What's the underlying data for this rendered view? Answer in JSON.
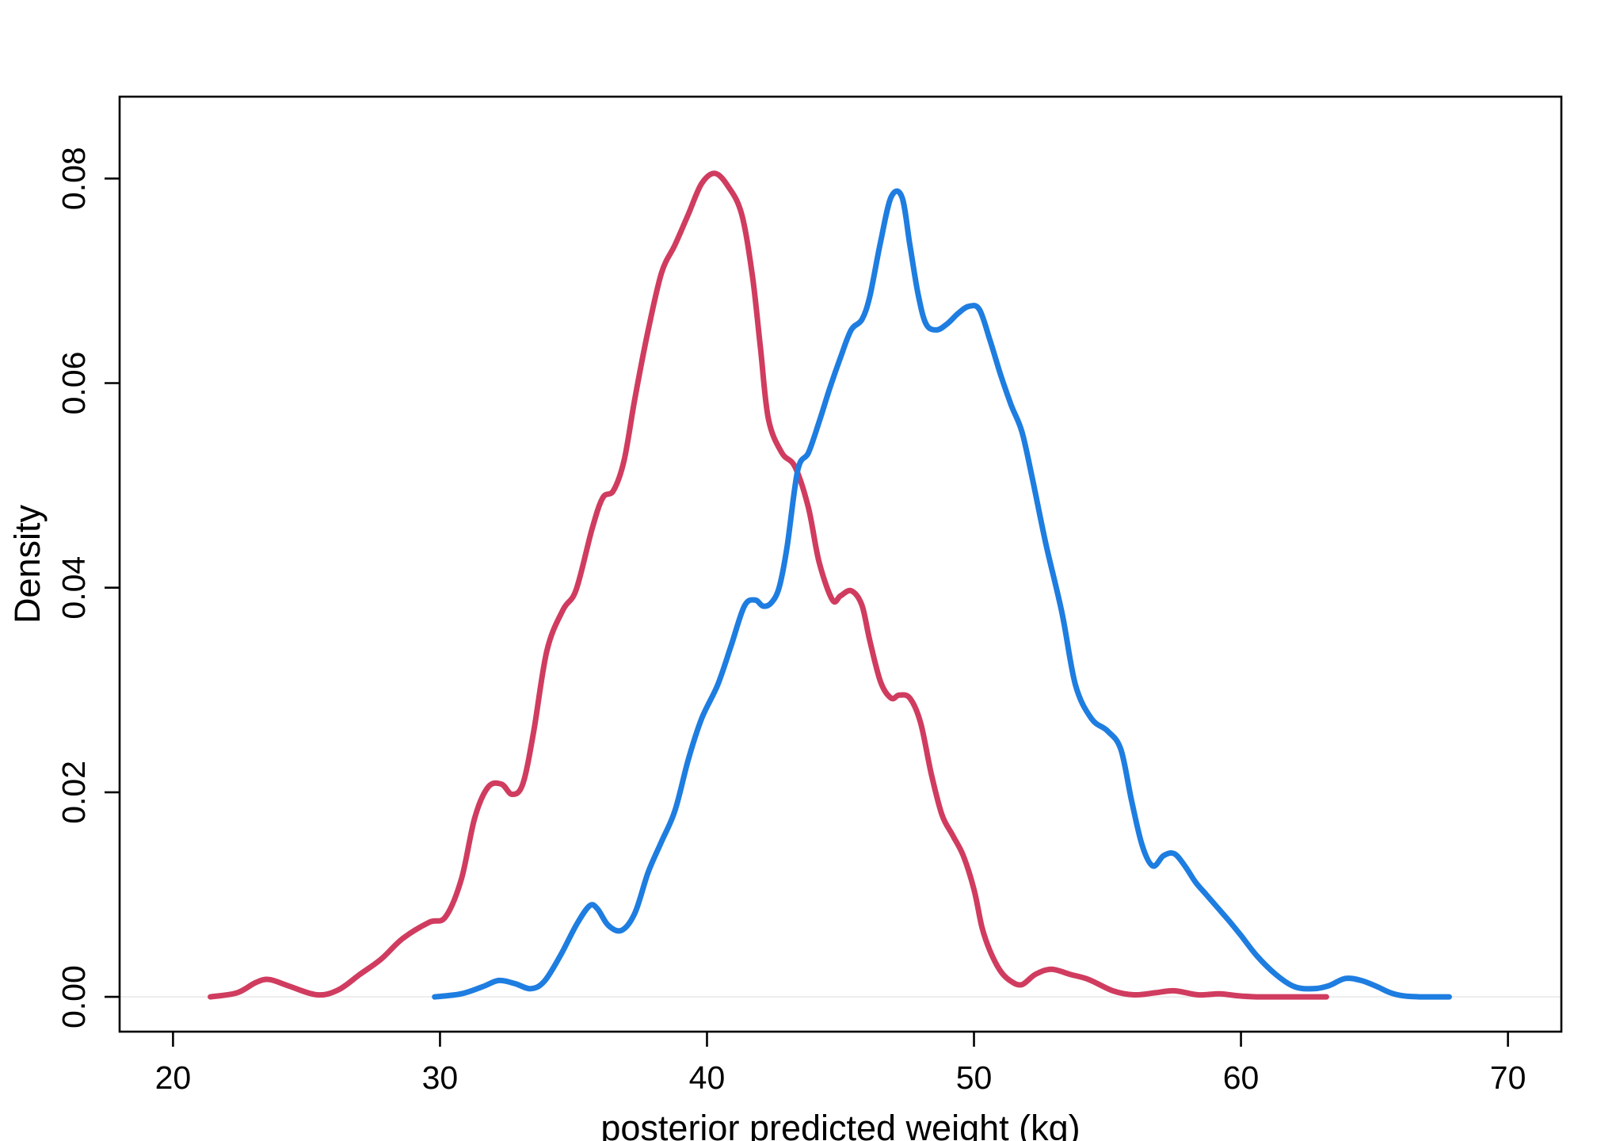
{
  "chart_data": {
    "type": "line",
    "title": "",
    "xlabel": "posterior predicted weight (kg)",
    "ylabel": "Density",
    "xlim": [
      18,
      72
    ],
    "ylim": [
      -0.0034,
      0.088
    ],
    "x_ticks": [
      20,
      30,
      40,
      50,
      60,
      70
    ],
    "x_tick_labels": [
      "20",
      "30",
      "40",
      "50",
      "60",
      "70"
    ],
    "y_ticks": [
      0.0,
      0.02,
      0.04,
      0.06,
      0.08
    ],
    "y_tick_labels": [
      "0.00",
      "0.02",
      "0.04",
      "0.06",
      "0.08"
    ],
    "grid": false,
    "legend": "none",
    "series": [
      {
        "color": "#d03c5f",
        "x": [
          21.4,
          22.4,
          23.1,
          23.6,
          24.3,
          25.4,
          26.2,
          27.0,
          27.8,
          28.6,
          29.6,
          30.2,
          30.8,
          31.3,
          31.8,
          32.3,
          32.7,
          33.1,
          33.5,
          34.0,
          34.6,
          35.1,
          35.7,
          36.1,
          36.5,
          36.9,
          37.3,
          37.8,
          38.3,
          38.8,
          39.3,
          39.8,
          40.3,
          40.8,
          41.3,
          41.7,
          42.0,
          42.3,
          42.8,
          43.3,
          43.8,
          44.2,
          44.7,
          45.0,
          45.4,
          45.8,
          46.1,
          46.5,
          46.9,
          47.2,
          47.6,
          48.0,
          48.4,
          48.8,
          49.2,
          49.6,
          50.0,
          50.3,
          50.6,
          51.0,
          51.4,
          51.8,
          52.3,
          52.9,
          53.6,
          54.3,
          55.2,
          56.0,
          56.8,
          57.5,
          58.4,
          59.2,
          59.9,
          60.6,
          61.3,
          62.0,
          62.6,
          63.2
        ],
        "y": [
          0.0,
          0.0004,
          0.0014,
          0.0017,
          0.0011,
          0.0002,
          0.0007,
          0.0022,
          0.0037,
          0.0057,
          0.0073,
          0.0078,
          0.0115,
          0.0175,
          0.0205,
          0.0208,
          0.0198,
          0.0208,
          0.0258,
          0.0338,
          0.0378,
          0.0398,
          0.0458,
          0.0488,
          0.0495,
          0.0525,
          0.0585,
          0.0652,
          0.0708,
          0.0735,
          0.0765,
          0.0795,
          0.0805,
          0.0792,
          0.0765,
          0.0705,
          0.0635,
          0.0565,
          0.0532,
          0.0518,
          0.0478,
          0.0425,
          0.0388,
          0.0392,
          0.0397,
          0.0383,
          0.0348,
          0.0308,
          0.0292,
          0.0295,
          0.0292,
          0.0268,
          0.0218,
          0.0178,
          0.0158,
          0.0138,
          0.0105,
          0.0068,
          0.0045,
          0.0025,
          0.0015,
          0.0012,
          0.0022,
          0.0027,
          0.0022,
          0.0017,
          0.0006,
          0.0002,
          0.0004,
          0.0006,
          0.0002,
          0.0003,
          0.0001,
          0.0,
          0.0,
          0.0,
          0.0,
          0.0
        ]
      },
      {
        "color": "#1e7de0",
        "x": [
          29.8,
          30.8,
          31.6,
          32.2,
          32.8,
          33.4,
          33.9,
          34.5,
          35.1,
          35.6,
          35.9,
          36.3,
          36.8,
          37.3,
          37.8,
          38.3,
          38.8,
          39.3,
          39.8,
          40.4,
          40.9,
          41.4,
          41.8,
          42.1,
          42.4,
          42.7,
          43.0,
          43.4,
          43.8,
          44.2,
          44.6,
          45.0,
          45.4,
          45.8,
          46.1,
          46.5,
          46.9,
          47.3,
          47.6,
          47.9,
          48.2,
          48.6,
          49.0,
          49.4,
          49.8,
          50.2,
          50.6,
          51.0,
          51.4,
          51.8,
          52.2,
          52.7,
          53.3,
          53.8,
          54.4,
          55.0,
          55.5,
          55.9,
          56.3,
          56.7,
          57.1,
          57.5,
          57.9,
          58.3,
          58.7,
          59.1,
          59.5,
          60.0,
          60.6,
          61.3,
          62.0,
          62.7,
          63.3,
          63.9,
          64.5,
          65.1,
          65.6,
          66.1,
          66.7,
          67.3,
          67.8
        ],
        "y": [
          0.0,
          0.0003,
          0.001,
          0.0016,
          0.0013,
          0.0008,
          0.0015,
          0.004,
          0.007,
          0.0089,
          0.0086,
          0.007,
          0.0065,
          0.0082,
          0.0122,
          0.0152,
          0.0182,
          0.0232,
          0.0272,
          0.0305,
          0.0343,
          0.0382,
          0.0388,
          0.0382,
          0.0385,
          0.04,
          0.044,
          0.0515,
          0.0532,
          0.0562,
          0.0595,
          0.0625,
          0.0652,
          0.0662,
          0.0685,
          0.0738,
          0.0782,
          0.0782,
          0.0735,
          0.0688,
          0.0658,
          0.0652,
          0.0658,
          0.0668,
          0.0675,
          0.0672,
          0.0642,
          0.0608,
          0.0578,
          0.0552,
          0.0505,
          0.0442,
          0.0375,
          0.0305,
          0.0272,
          0.026,
          0.0242,
          0.0192,
          0.0148,
          0.0128,
          0.0138,
          0.014,
          0.0128,
          0.0112,
          0.01,
          0.0088,
          0.0076,
          0.006,
          0.004,
          0.0022,
          0.001,
          0.0008,
          0.0011,
          0.0018,
          0.0016,
          0.001,
          0.0004,
          0.0001,
          0.0,
          0.0,
          0.0
        ]
      }
    ]
  }
}
